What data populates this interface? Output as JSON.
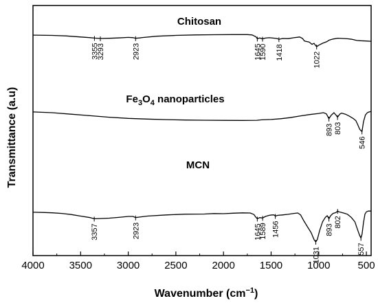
{
  "chart_data": {
    "type": "line",
    "title": "",
    "xlabel": "Wavenumber",
    "xlabel_unit_prefix": "(cm",
    "xlabel_unit_sup": "−1",
    "xlabel_unit_suffix": ")",
    "ylabel": "Transmittance (a.u)",
    "xlim": [
      4000,
      450
    ],
    "x_reversed": true,
    "x_ticks": [
      "4000",
      "3500",
      "3000",
      "2500",
      "2000",
      "1500",
      "1000",
      "500"
    ],
    "y_ticks_shown": false,
    "grid": false,
    "series": [
      {
        "name": "Chitosan",
        "color": "#000000",
        "points": [
          [
            4000,
            0.865
          ],
          [
            3800,
            0.86
          ],
          [
            3650,
            0.85
          ],
          [
            3500,
            0.832
          ],
          [
            3400,
            0.82
          ],
          [
            3355,
            0.812
          ],
          [
            3293,
            0.805
          ],
          [
            3200,
            0.808
          ],
          [
            3100,
            0.815
          ],
          [
            3000,
            0.825
          ],
          [
            2950,
            0.82
          ],
          [
            2923,
            0.808
          ],
          [
            2880,
            0.815
          ],
          [
            2850,
            0.822
          ],
          [
            2700,
            0.845
          ],
          [
            2500,
            0.86
          ],
          [
            2300,
            0.868
          ],
          [
            2100,
            0.872
          ],
          [
            1900,
            0.875
          ],
          [
            1750,
            0.874
          ],
          [
            1700,
            0.868
          ],
          [
            1660,
            0.835
          ],
          [
            1645,
            0.8
          ],
          [
            1620,
            0.815
          ],
          [
            1590,
            0.798
          ],
          [
            1560,
            0.812
          ],
          [
            1520,
            0.818
          ],
          [
            1480,
            0.812
          ],
          [
            1440,
            0.805
          ],
          [
            1418,
            0.79
          ],
          [
            1380,
            0.805
          ],
          [
            1320,
            0.802
          ],
          [
            1260,
            0.818
          ],
          [
            1200,
            0.832
          ],
          [
            1170,
            0.805
          ],
          [
            1150,
            0.76
          ],
          [
            1100,
            0.74
          ],
          [
            1070,
            0.7
          ],
          [
            1050,
            0.72
          ],
          [
            1030,
            0.675
          ],
          [
            1022,
            0.66
          ],
          [
            1000,
            0.685
          ],
          [
            960,
            0.72
          ],
          [
            920,
            0.745
          ],
          [
            890,
            0.775
          ],
          [
            850,
            0.795
          ],
          [
            800,
            0.81
          ],
          [
            750,
            0.805
          ],
          [
            700,
            0.8
          ],
          [
            650,
            0.79
          ],
          [
            600,
            0.77
          ],
          [
            560,
            0.765
          ],
          [
            500,
            0.76
          ],
          [
            450,
            0.755
          ]
        ],
        "annotations": [
          {
            "label": "3355",
            "x": 3355
          },
          {
            "label": "3293",
            "x": 3293
          },
          {
            "label": "2923",
            "x": 2923
          },
          {
            "label": "1645",
            "x": 1645
          },
          {
            "label": "1590",
            "x": 1590
          },
          {
            "label": "1418",
            "x": 1418
          },
          {
            "label": "1022",
            "x": 1022
          }
        ]
      },
      {
        "name": "Fe3O4 nanoparticles",
        "name_parts": {
          "base": "Fe",
          "sub1": "3",
          "mid": "O",
          "sub2": "4",
          "rest": " nanoparticles"
        },
        "color": "#000000",
        "points": [
          [
            4000,
            0.61
          ],
          [
            3800,
            0.6
          ],
          [
            3600,
            0.58
          ],
          [
            3400,
            0.56
          ],
          [
            3200,
            0.54
          ],
          [
            3000,
            0.525
          ],
          [
            2800,
            0.515
          ],
          [
            2600,
            0.508
          ],
          [
            2400,
            0.503
          ],
          [
            2200,
            0.5
          ],
          [
            2000,
            0.498
          ],
          [
            1800,
            0.497
          ],
          [
            1650,
            0.499
          ],
          [
            1600,
            0.505
          ],
          [
            1500,
            0.51
          ],
          [
            1400,
            0.52
          ],
          [
            1300,
            0.535
          ],
          [
            1200,
            0.555
          ],
          [
            1100,
            0.575
          ],
          [
            1000,
            0.59
          ],
          [
            950,
            0.6
          ],
          [
            920,
            0.585
          ],
          [
            893,
            0.52
          ],
          [
            870,
            0.565
          ],
          [
            840,
            0.6
          ],
          [
            820,
            0.57
          ],
          [
            803,
            0.54
          ],
          [
            780,
            0.58
          ],
          [
            760,
            0.595
          ],
          [
            720,
            0.58
          ],
          [
            680,
            0.555
          ],
          [
            640,
            0.525
          ],
          [
            610,
            0.495
          ],
          [
            590,
            0.44
          ],
          [
            570,
            0.38
          ],
          [
            555,
            0.36
          ],
          [
            546,
            0.35
          ],
          [
            530,
            0.48
          ],
          [
            510,
            0.57
          ],
          [
            490,
            0.6
          ],
          [
            470,
            0.61
          ],
          [
            450,
            0.615
          ]
        ],
        "annotations": [
          {
            "label": "893",
            "x": 893
          },
          {
            "label": "803",
            "x": 803
          },
          {
            "label": "546",
            "x": 546
          }
        ]
      },
      {
        "name": "MCN",
        "color": "#000000",
        "points": [
          [
            4000,
            0.385
          ],
          [
            3900,
            0.382
          ],
          [
            3800,
            0.378
          ],
          [
            3700,
            0.37
          ],
          [
            3600,
            0.355
          ],
          [
            3500,
            0.335
          ],
          [
            3400,
            0.315
          ],
          [
            3357,
            0.3
          ],
          [
            3300,
            0.303
          ],
          [
            3200,
            0.308
          ],
          [
            3100,
            0.318
          ],
          [
            3000,
            0.33
          ],
          [
            2950,
            0.33
          ],
          [
            2923,
            0.315
          ],
          [
            2880,
            0.322
          ],
          [
            2800,
            0.335
          ],
          [
            2600,
            0.35
          ],
          [
            2400,
            0.36
          ],
          [
            2200,
            0.362
          ],
          [
            2100,
            0.368
          ],
          [
            2000,
            0.366
          ],
          [
            1900,
            0.372
          ],
          [
            1800,
            0.377
          ],
          [
            1720,
            0.375
          ],
          [
            1680,
            0.355
          ],
          [
            1660,
            0.32
          ],
          [
            1645,
            0.3
          ],
          [
            1620,
            0.315
          ],
          [
            1589,
            0.31
          ],
          [
            1560,
            0.33
          ],
          [
            1520,
            0.345
          ],
          [
            1490,
            0.35
          ],
          [
            1470,
            0.35
          ],
          [
            1456,
            0.335
          ],
          [
            1430,
            0.345
          ],
          [
            1380,
            0.35
          ],
          [
            1320,
            0.358
          ],
          [
            1260,
            0.37
          ],
          [
            1220,
            0.375
          ],
          [
            1190,
            0.35
          ],
          [
            1160,
            0.28
          ],
          [
            1120,
            0.2
          ],
          [
            1080,
            0.12
          ],
          [
            1060,
            0.06
          ],
          [
            1045,
            0.02
          ],
          [
            1031,
            0.0
          ],
          [
            1015,
            0.03
          ],
          [
            990,
            0.15
          ],
          [
            960,
            0.26
          ],
          [
            930,
            0.32
          ],
          [
            910,
            0.34
          ],
          [
            893,
            0.3
          ],
          [
            875,
            0.34
          ],
          [
            850,
            0.37
          ],
          [
            820,
            0.38
          ],
          [
            802,
            0.4
          ],
          [
            790,
            0.39
          ],
          [
            770,
            0.385
          ],
          [
            740,
            0.375
          ],
          [
            700,
            0.36
          ],
          [
            660,
            0.32
          ],
          [
            620,
            0.26
          ],
          [
            590,
            0.15
          ],
          [
            570,
            0.08
          ],
          [
            557,
            0.05
          ],
          [
            545,
            0.1
          ],
          [
            530,
            0.25
          ],
          [
            515,
            0.36
          ],
          [
            500,
            0.39
          ],
          [
            480,
            0.4
          ],
          [
            450,
            0.4
          ]
        ],
        "annotations": [
          {
            "label": "3357",
            "x": 3357
          },
          {
            "label": "2923",
            "x": 2923
          },
          {
            "label": "1645",
            "x": 1645
          },
          {
            "label": "1589",
            "x": 1589
          },
          {
            "label": "1456",
            "x": 1456
          },
          {
            "label": "1031",
            "x": 1031
          },
          {
            "label": "893",
            "x": 893
          },
          {
            "label": "802",
            "x": 802
          },
          {
            "label": "557",
            "x": 557
          }
        ]
      }
    ]
  }
}
